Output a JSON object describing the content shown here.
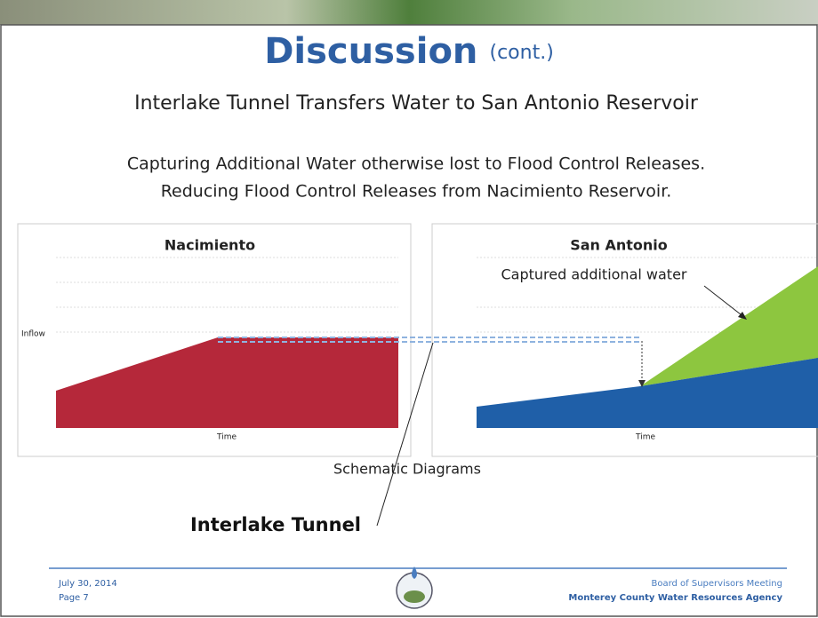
{
  "header": {
    "title": "Discussion",
    "title_suffix": "(cont.)",
    "subtitle": "Interlake Tunnel Transfers Water to San Antonio Reservoir",
    "lines": [
      "Capturing Additional Water otherwise lost to Flood Control Releases.",
      "Reducing Flood Control Releases from Nacimiento Reservoir."
    ]
  },
  "diagram": {
    "left_title": "Nacimiento",
    "right_title": "San Antonio",
    "y_label": "Inflow",
    "left_x_label": "Time",
    "right_x_label": "Time",
    "annotation": "Captured additional water",
    "caption": "Schematic Diagrams",
    "tunnel_label": "Interlake Tunnel"
  },
  "footer": {
    "date": "July 30, 2014",
    "page": "Page 7",
    "meeting": "Board of Supervisors Meeting",
    "agency": "Monterey County Water Resources Agency"
  }
}
